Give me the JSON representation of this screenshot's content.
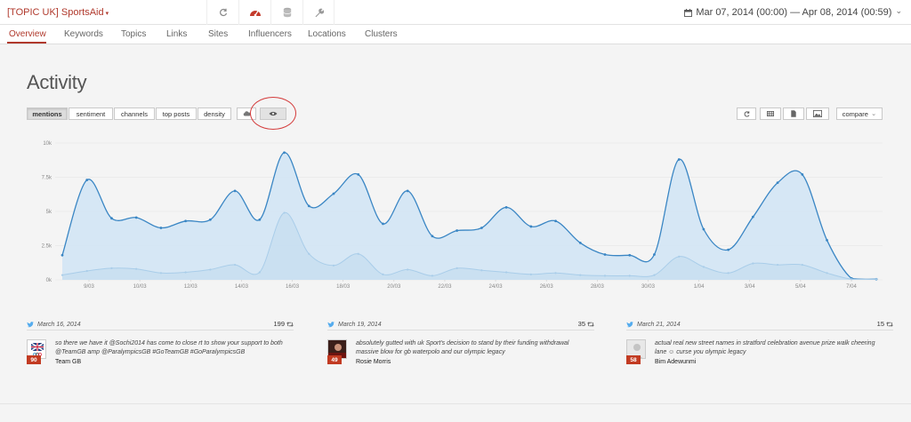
{
  "header": {
    "title": "[TOPIC UK] SportsAid",
    "title_caret": "chevron-down-icon",
    "tools": [
      "refresh-icon",
      "dashboard-icon",
      "database-icon",
      "wrench-icon"
    ],
    "daterange": "Mar 07, 2014 (00:00) — Apr 08, 2014 (00:59)",
    "daterange_caret": "⌄"
  },
  "colors": {
    "accent": "#b0392c",
    "line_primary": "#3a86c4",
    "line_secondary": "#a9cde9",
    "area_fill": "#d3e6f5"
  },
  "nav": {
    "items": [
      {
        "label": "Overview",
        "active": true
      },
      {
        "label": "Keywords"
      },
      {
        "label": "Topics"
      },
      {
        "label": "Links"
      },
      {
        "label": "Sites"
      },
      {
        "label": "Influencers"
      },
      {
        "label": "Locations"
      },
      {
        "label": "Clusters"
      }
    ]
  },
  "activity": {
    "title": "Activity",
    "views": [
      {
        "label": "mentions",
        "active": true
      },
      {
        "label": "sentiment"
      },
      {
        "label": "channels"
      },
      {
        "label": "top posts"
      },
      {
        "label": "density"
      }
    ],
    "view_icons": [
      "cloud-icon",
      "eye-icon"
    ],
    "right_tools": [
      "reload-icon",
      "table-icon",
      "document-icon",
      "image-icon"
    ],
    "compare_label": "compare",
    "compare_caret": "⌄"
  },
  "chart_data": {
    "type": "area",
    "x_tick_labels": [
      "9/03",
      "10/03",
      "12/03",
      "14/03",
      "16/03",
      "18/03",
      "20/03",
      "22/03",
      "24/03",
      "26/03",
      "28/03",
      "30/03",
      "1/04",
      "3/04",
      "5/04",
      "7/04"
    ],
    "y_tick_labels": [
      "0k",
      "2.5k",
      "5k",
      "7.5k",
      "10k"
    ],
    "ylim": [
      0,
      10000
    ],
    "grid": true,
    "series": [
      {
        "values": [
          1800,
          7300,
          4500,
          4550,
          3800,
          4300,
          4400,
          6500,
          4400,
          9300,
          5400,
          6300,
          7700,
          4100,
          6500,
          3200,
          3600,
          3800,
          5300,
          3900,
          4300,
          2700,
          1850,
          1800,
          1850,
          8800,
          3700,
          2200,
          4600,
          7100,
          7700,
          2900,
          100,
          50
        ]
      },
      {
        "values": [
          350,
          650,
          850,
          800,
          500,
          550,
          750,
          1100,
          550,
          4900,
          1900,
          1050,
          1900,
          400,
          750,
          300,
          850,
          700,
          550,
          400,
          500,
          350,
          300,
          300,
          350,
          1700,
          950,
          500,
          1200,
          1100,
          1100,
          500,
          50,
          50
        ]
      }
    ]
  },
  "posts": [
    {
      "date": "March 16, 2014",
      "count": "199",
      "text": "so there we have it @Sochi2014 has come to close rt to show your support to both @TeamGB amp @ParalympicsGB #GoTeamGB #GoParalympicsGB",
      "author": "Team GB",
      "score": "90",
      "avatar_icon": "team-gb-logo-icon"
    },
    {
      "date": "March 19, 2014",
      "count": "35",
      "text": "absolutely gutted with uk Sport's decision to stand by their funding withdrawal massive blow for gb waterpolo and our olympic legacy",
      "author": "Rosie Morris",
      "score": "49",
      "avatar_icon": "person-photo-icon"
    },
    {
      "date": "March 21, 2014",
      "count": "15",
      "text": "actual real new street names in stratford celebration avenue prize walk cheering lane ☺ curse you olympic legacy",
      "author": "Bim Adewunmi",
      "score": "58",
      "avatar_icon": "default-avatar-icon"
    }
  ]
}
